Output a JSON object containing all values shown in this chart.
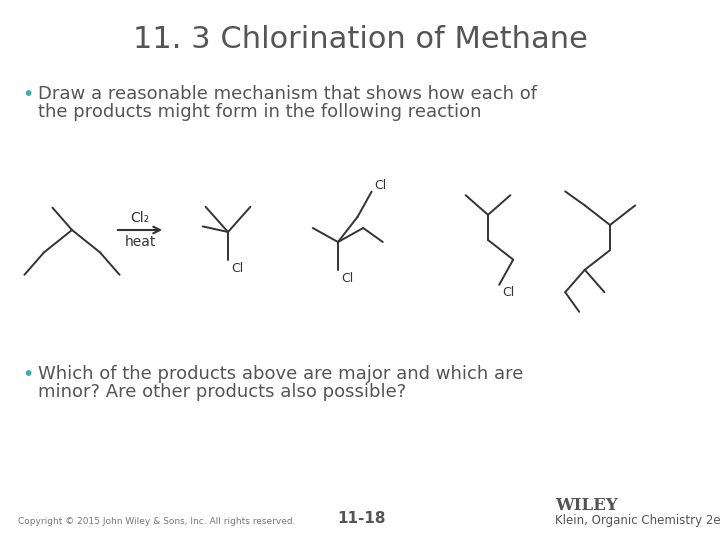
{
  "title": "11. 3 Chlorination of Methane",
  "title_color": "#555555",
  "title_fontsize": 22,
  "bullet1_line1": "Draw a reasonable mechanism that shows how each of",
  "bullet1_line2": "the products might form in the following reaction",
  "bullet2_line1": "Which of the products above are major and which are",
  "bullet2_line2": "minor? Are other products also possible?",
  "bullet_color": "#3aacb8",
  "text_color": "#555555",
  "text_fontsize": 13,
  "footer_copyright": "Copyright © 2015 John Wiley & Sons, Inc. All rights reserved.",
  "footer_page": "11-18",
  "footer_right": "Klein, Organic Chemistry 2e",
  "footer_wiley": "WILEY",
  "background_color": "#ffffff",
  "line_color": "#333333"
}
